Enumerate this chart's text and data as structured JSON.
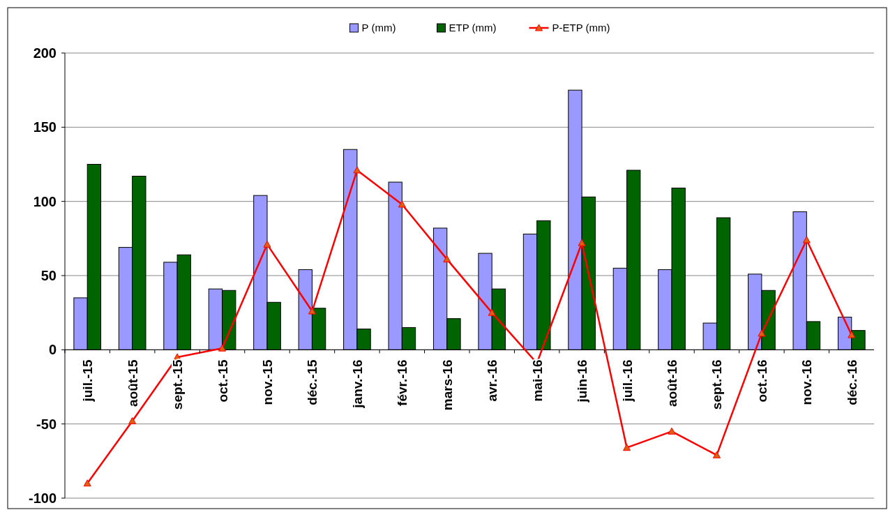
{
  "chart_data": {
    "type": "bar",
    "categories": [
      "juil.-15",
      "août-15",
      "sept.-15",
      "oct.-15",
      "nov.-15",
      "déc.-15",
      "janv.-16",
      "févr.-16",
      "mars-16",
      "avr.-16",
      "mai-16",
      "juin-16",
      "juil.-16",
      "août-16",
      "sept.-16",
      "oct.-16",
      "nov.-16",
      "déc.-16"
    ],
    "series": [
      {
        "name": "P (mm)",
        "color": "#9999ff",
        "values": [
          35,
          69,
          59,
          41,
          104,
          54,
          135,
          113,
          82,
          65,
          78,
          175,
          55,
          54,
          18,
          51,
          93,
          22
        ]
      },
      {
        "name": "ETP (mm)",
        "color": "#006400",
        "values": [
          125,
          117,
          64,
          40,
          32,
          28,
          14,
          15,
          21,
          41,
          87,
          103,
          121,
          109,
          89,
          40,
          19,
          13
        ]
      },
      {
        "name": "P-ETP (mm)",
        "type": "line",
        "color": "#ff0000",
        "marker": "triangle",
        "values": [
          -90,
          -48,
          -5,
          1,
          71,
          26,
          121,
          98,
          61,
          25,
          -9,
          72,
          -66,
          -55,
          -71,
          11,
          74,
          10
        ]
      }
    ],
    "ylim": [
      -100,
      200
    ],
    "yticks": [
      -100,
      -50,
      0,
      50,
      100,
      150,
      200
    ],
    "grid": "y",
    "legend": "top"
  }
}
